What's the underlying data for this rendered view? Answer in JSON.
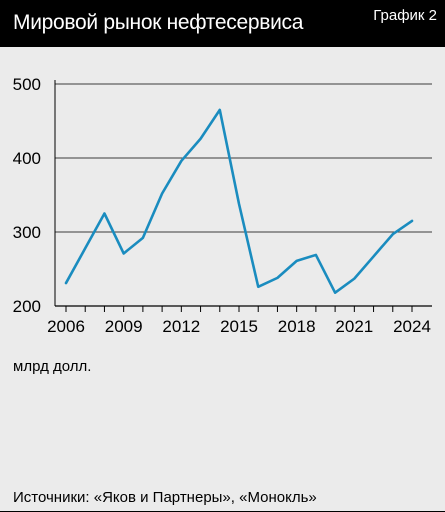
{
  "header": {
    "title": "Мировой рынок нефтесервиса",
    "chart_number": "График 2"
  },
  "unit_label": "млрд долл.",
  "source": "Источники: «Яков и Партнеры», «Монокль»",
  "colors": {
    "line": "#1a8cbf",
    "header_bg": "#000000",
    "background": "#ebebeb"
  },
  "chart_data": {
    "type": "line",
    "x": [
      2006,
      2007,
      2008,
      2009,
      2010,
      2011,
      2012,
      2013,
      2014,
      2015,
      2016,
      2017,
      2018,
      2019,
      2020,
      2021,
      2022,
      2023,
      2024
    ],
    "series": [
      {
        "values": [
          231,
          278,
          325,
          271,
          292,
          352,
          396,
          426,
          465,
          338,
          226,
          238,
          261,
          269,
          218,
          237,
          267,
          297,
          315
        ]
      }
    ],
    "xticks": [
      "2006",
      "2009",
      "2012",
      "2015",
      "2018",
      "2021",
      "2024"
    ],
    "yticks": [
      "200",
      "300",
      "400",
      "500"
    ],
    "xlim": [
      2006,
      2024
    ],
    "ylim": [
      200,
      500
    ],
    "ylabel": "млрд долл.",
    "grid": "horizontal"
  }
}
